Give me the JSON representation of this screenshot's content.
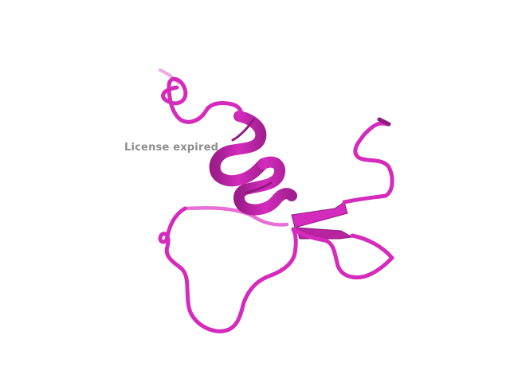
{
  "viewer": {
    "watermark_text": "License expired",
    "background_color": "#ffffff"
  },
  "structure": {
    "representation": "cartoon",
    "colors": {
      "main": "#d42bbd",
      "dark": "#8e1a7e",
      "light": "#e86fd6",
      "faded": "#f0a8e6"
    }
  }
}
